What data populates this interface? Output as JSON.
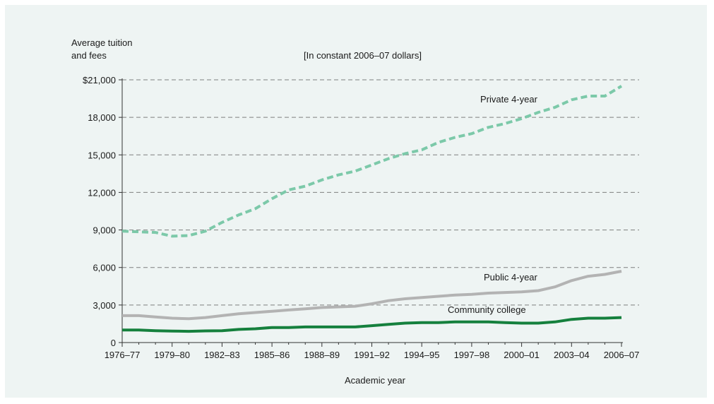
{
  "chart_data": {
    "type": "line",
    "ylabel_line1": "Average tuition",
    "ylabel_line2": "and fees",
    "subtitle": "[In constant 2006–07 dollars]",
    "xlabel": "Academic year",
    "ylim": [
      0,
      21000
    ],
    "yticks": [
      {
        "value": 0,
        "label": "0"
      },
      {
        "value": 3000,
        "label": "3,000"
      },
      {
        "value": 6000,
        "label": "6,000"
      },
      {
        "value": 9000,
        "label": "9,000"
      },
      {
        "value": 12000,
        "label": "12,000"
      },
      {
        "value": 15000,
        "label": "15,000"
      },
      {
        "value": 18000,
        "label": "18,000"
      },
      {
        "value": 21000,
        "label": "$21,000"
      }
    ],
    "xtick_labels": [
      "1976–77",
      "1979–80",
      "1982–83",
      "1985–86",
      "1988–89",
      "1991–92",
      "1994–95",
      "1997–98",
      "2000–01",
      "2003–04",
      "2006–07"
    ],
    "grid": "horizontal dashed",
    "categories": [
      "1976–77",
      "1977–78",
      "1978–79",
      "1979–80",
      "1980–81",
      "1981–82",
      "1982–83",
      "1983–84",
      "1984–85",
      "1985–86",
      "1986–87",
      "1987–88",
      "1988–89",
      "1989–90",
      "1990–91",
      "1991–92",
      "1992–93",
      "1993–94",
      "1994–95",
      "1995–96",
      "1996–97",
      "1997–98",
      "1998–99",
      "1999–00",
      "2000–01",
      "2001–02",
      "2002–03",
      "2003–04",
      "2004–05",
      "2005–06",
      "2006–07"
    ],
    "series": [
      {
        "name": "Private 4-year",
        "color": "#7cc9a9",
        "style": "dashed",
        "values": [
          8900,
          8850,
          8800,
          8500,
          8550,
          8900,
          9600,
          10200,
          10700,
          11500,
          12200,
          12500,
          13000,
          13400,
          13700,
          14200,
          14700,
          15100,
          15400,
          16000,
          16400,
          16700,
          17200,
          17500,
          17900,
          18400,
          18800,
          19400,
          19700,
          19700,
          20500
        ]
      },
      {
        "name": "Public 4-year",
        "color": "#b3b3b3",
        "style": "solid",
        "values": [
          2150,
          2150,
          2050,
          1950,
          1900,
          2000,
          2150,
          2300,
          2400,
          2500,
          2600,
          2700,
          2800,
          2850,
          2900,
          3100,
          3350,
          3500,
          3600,
          3700,
          3800,
          3850,
          3950,
          4000,
          4050,
          4150,
          4450,
          4950,
          5300,
          5450,
          5700
        ]
      },
      {
        "name": "Community college",
        "color": "#15803d",
        "style": "solid",
        "values": [
          1000,
          1000,
          950,
          920,
          900,
          930,
          950,
          1050,
          1100,
          1200,
          1200,
          1250,
          1250,
          1250,
          1250,
          1350,
          1450,
          1550,
          1600,
          1600,
          1650,
          1650,
          1650,
          1600,
          1550,
          1550,
          1650,
          1850,
          1950,
          1950,
          2000
        ]
      }
    ]
  }
}
